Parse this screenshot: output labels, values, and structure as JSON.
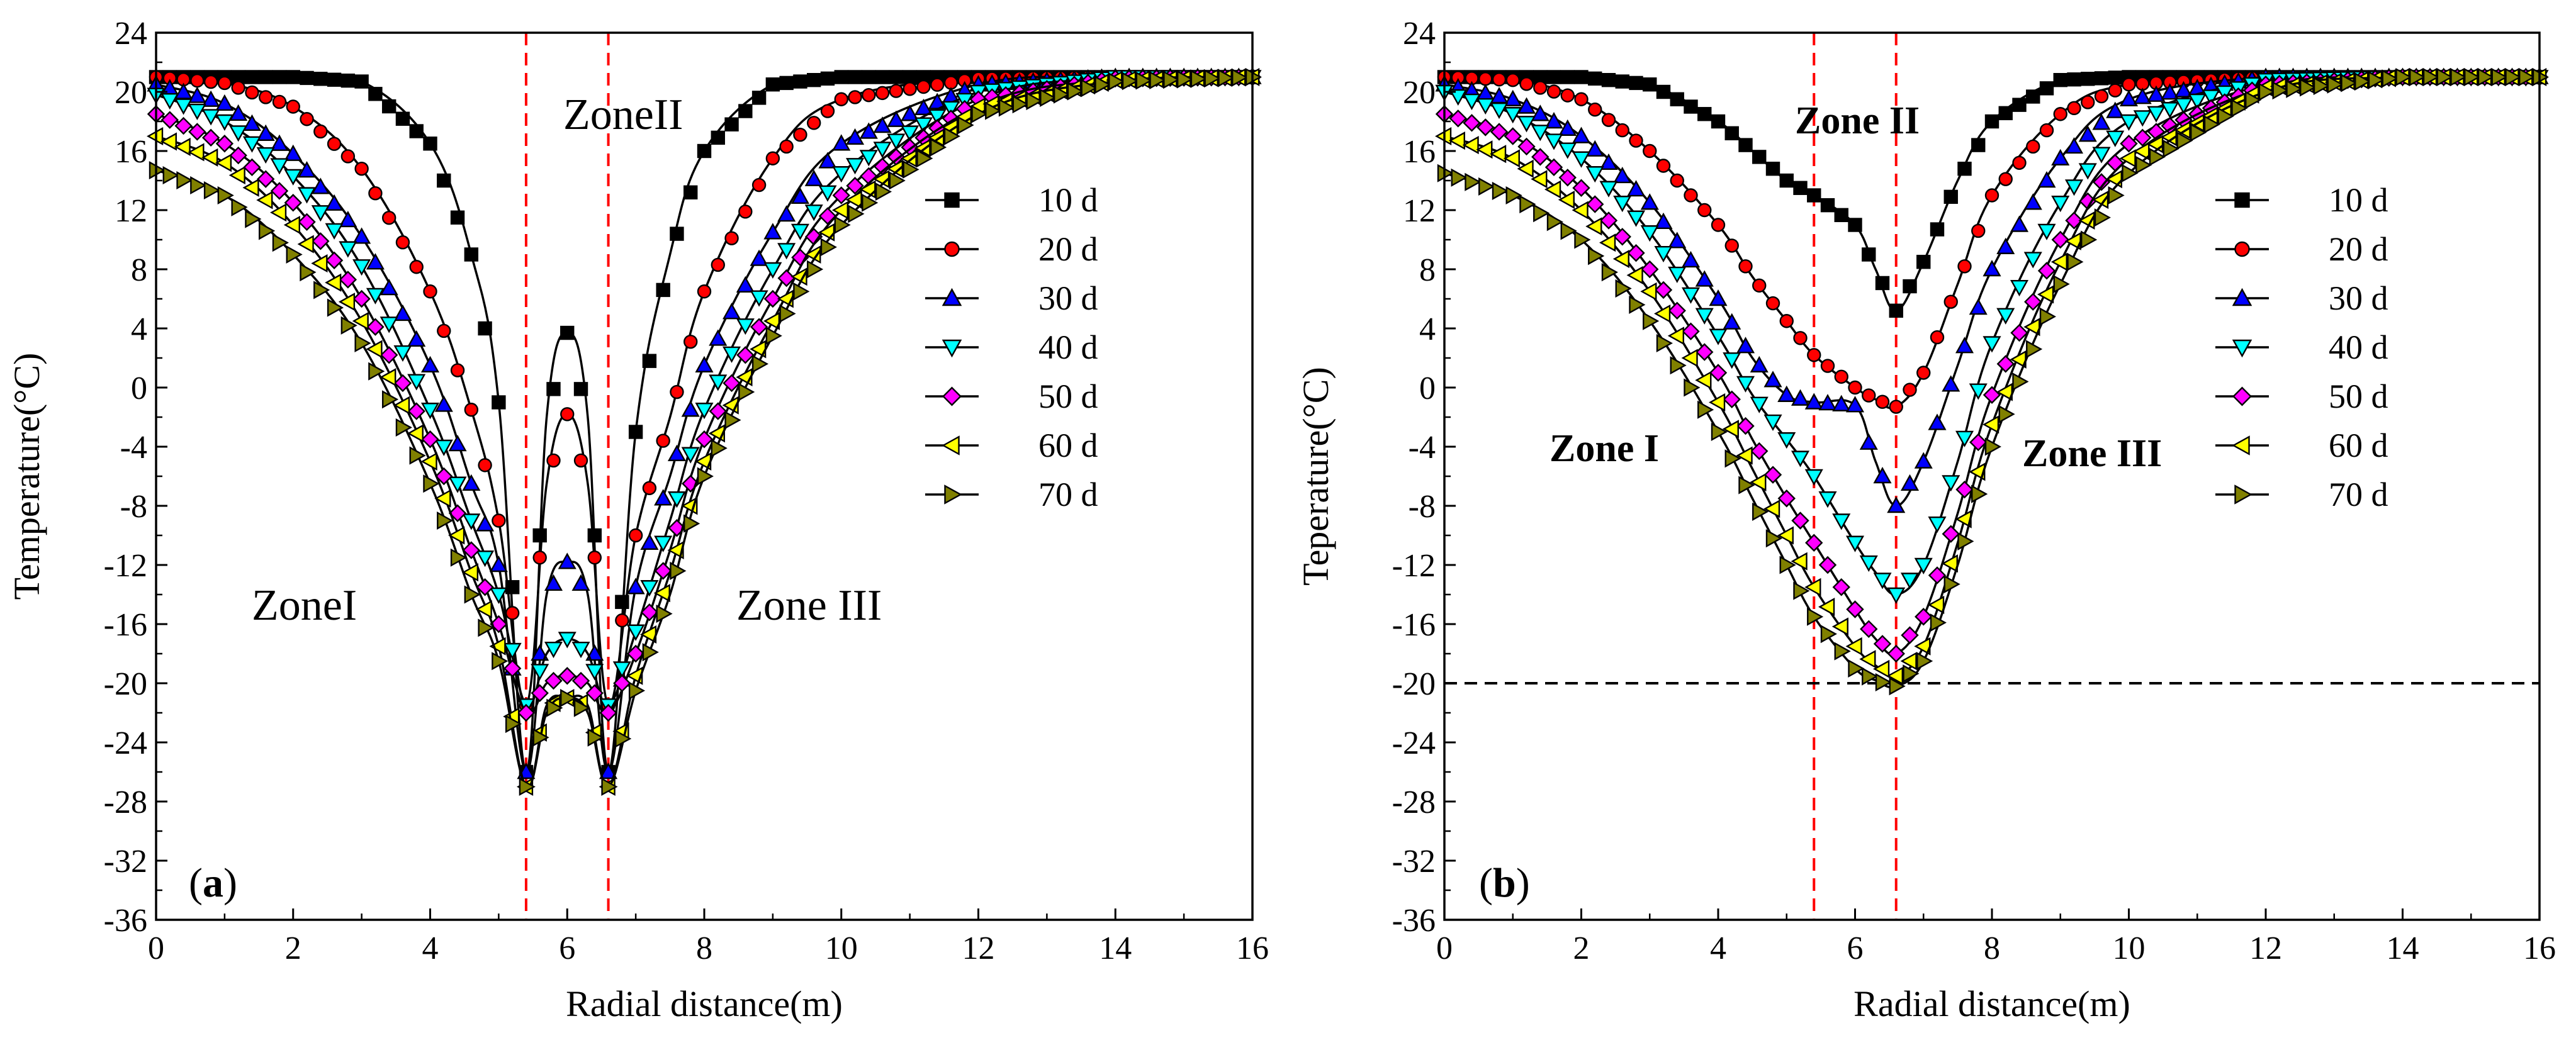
{
  "figure": {
    "xlabel": "Radial distance(m)",
    "xlim": [
      0,
      16
    ],
    "ylim": [
      -36,
      24
    ],
    "x_ticks": [
      0,
      2,
      4,
      6,
      8,
      10,
      12,
      14,
      16
    ],
    "y_ticks": [
      -36,
      -32,
      -28,
      -24,
      -20,
      -16,
      -12,
      -8,
      -4,
      0,
      4,
      8,
      12,
      16,
      20,
      24
    ]
  },
  "series_styles": [
    {
      "name": "10 d",
      "marker": "square",
      "color": "#000000"
    },
    {
      "name": "20 d",
      "marker": "circle",
      "color": "#ff0000"
    },
    {
      "name": "30 d",
      "marker": "triangle-up",
      "color": "#0000ff"
    },
    {
      "name": "40 d",
      "marker": "triangle-down",
      "color": "#00ffff"
    },
    {
      "name": "50 d",
      "marker": "diamond",
      "color": "#ff00ff"
    },
    {
      "name": "60 d",
      "marker": "triangle-left",
      "color": "#ffff00"
    },
    {
      "name": "70 d",
      "marker": "triangle-right",
      "color": "#808000"
    }
  ],
  "chart_data": [
    {
      "type": "line",
      "panel": "a",
      "panel_label_open": "(",
      "panel_label_letter": "a",
      "panel_label_close": ")",
      "ylabel": "Temperature(°C)",
      "xlim": [
        0,
        16
      ],
      "ylim": [
        -36,
        24
      ],
      "zone_labels": {
        "zone1": "ZoneI",
        "zone2": "ZoneII",
        "zone3": "Zone  III"
      },
      "vlines": [
        5.4,
        6.6
      ],
      "hline": null,
      "x": [
        0,
        1,
        2,
        3,
        4,
        4.6,
        5.0,
        5.4,
        5.7,
        6.0,
        6.3,
        6.6,
        7.0,
        7.5,
        8,
        9,
        10,
        12,
        14,
        16
      ],
      "series": [
        {
          "name": "10 d",
          "values": [
            21.0,
            21.0,
            21.0,
            20.7,
            16.5,
            9.0,
            -1.0,
            -26.0,
            -2.0,
            3.7,
            -2.0,
            -26.0,
            -3.0,
            9.0,
            16.0,
            20.5,
            21.0,
            21.0,
            21.0,
            21.0
          ]
        },
        {
          "name": "20 d",
          "values": [
            21.0,
            20.6,
            19.0,
            14.8,
            6.5,
            -1.5,
            -9.0,
            -21.5,
            -6.5,
            -1.8,
            -6.5,
            -21.5,
            -10.0,
            -2.0,
            6.5,
            15.5,
            19.5,
            20.9,
            21.0,
            21.0
          ]
        },
        {
          "name": "30 d",
          "values": [
            20.5,
            19.2,
            15.8,
            10.2,
            1.5,
            -6.5,
            -12.0,
            -26.0,
            -14.0,
            -11.8,
            -14.0,
            -26.0,
            -13.5,
            -6.0,
            1.5,
            10.5,
            16.5,
            20.5,
            21.0,
            21.0
          ]
        },
        {
          "name": "40 d",
          "values": [
            19.8,
            18.0,
            14.3,
            8.2,
            -1.5,
            -9.0,
            -14.0,
            -21.5,
            -18.0,
            -17.0,
            -18.0,
            -21.5,
            -16.5,
            -9.0,
            -1.5,
            8.0,
            14.5,
            20.0,
            21.0,
            21.0
          ]
        },
        {
          "name": "50 d",
          "values": [
            18.5,
            16.5,
            12.5,
            6.0,
            -3.5,
            -11.0,
            -16.0,
            -22.0,
            -20.0,
            -19.5,
            -20.0,
            -22.0,
            -18.0,
            -11.0,
            -3.5,
            6.0,
            13.0,
            19.5,
            20.9,
            21.0
          ]
        },
        {
          "name": "60 d",
          "values": [
            17.0,
            15.2,
            11.0,
            4.5,
            -5.0,
            -12.5,
            -17.5,
            -27.0,
            -21.5,
            -21.0,
            -21.5,
            -27.0,
            -19.5,
            -12.5,
            -5.0,
            4.5,
            12.0,
            19.0,
            20.8,
            21.0
          ]
        },
        {
          "name": "70 d",
          "values": [
            14.7,
            13.0,
            9.0,
            3.0,
            -6.5,
            -14.0,
            -18.5,
            -27.0,
            -22.0,
            -21.0,
            -22.0,
            -27.0,
            -20.5,
            -14.0,
            -6.0,
            3.5,
            11.0,
            18.5,
            20.7,
            21.0
          ]
        }
      ]
    },
    {
      "type": "line",
      "panel": "b",
      "panel_label_open": "(",
      "panel_label_letter": "b",
      "panel_label_close": ")",
      "ylabel": "Teperature(°C)",
      "xlim": [
        0,
        16
      ],
      "ylim": [
        -36,
        24
      ],
      "zone_labels": {
        "zone1": "Zone I",
        "zone2": "Zone II",
        "zone3": "Zone III"
      },
      "vlines": [
        5.4,
        6.6
      ],
      "hline": -20,
      "x": [
        0,
        1,
        2,
        3,
        4,
        4.5,
        5.0,
        5.4,
        6.0,
        6.3,
        6.6,
        7.0,
        7.5,
        8,
        9,
        10,
        12,
        14,
        16
      ],
      "series": [
        {
          "name": "10 d",
          "values": [
            21.0,
            21.0,
            21.0,
            20.5,
            18.0,
            16.0,
            14.0,
            13.0,
            11.0,
            8.0,
            5.2,
            8.5,
            14.0,
            18.0,
            20.8,
            21.0,
            21.0,
            21.0,
            21.0
          ]
        },
        {
          "name": "20 d",
          "values": [
            21.0,
            20.8,
            19.5,
            16.0,
            11.0,
            7.5,
            4.5,
            2.2,
            0.0,
            -0.8,
            -1.3,
            1.0,
            7.0,
            13.0,
            18.5,
            20.5,
            21.0,
            21.0,
            21.0
          ]
        },
        {
          "name": "30 d",
          "values": [
            20.5,
            19.5,
            17.0,
            12.5,
            6.0,
            2.0,
            -0.5,
            -1.0,
            -1.2,
            -5.0,
            -8.0,
            -5.0,
            1.5,
            8.0,
            15.5,
            19.5,
            21.0,
            21.0,
            21.0
          ]
        },
        {
          "name": "40 d",
          "values": [
            20.0,
            18.5,
            15.5,
            10.5,
            3.5,
            -0.5,
            -3.5,
            -6.0,
            -10.5,
            -12.5,
            -14.0,
            -12.0,
            -5.0,
            3.0,
            12.5,
            18.0,
            20.8,
            21.0,
            21.0
          ]
        },
        {
          "name": "50 d",
          "values": [
            18.5,
            17.0,
            13.5,
            8.0,
            1.0,
            -3.5,
            -7.5,
            -10.5,
            -15.0,
            -17.0,
            -18.0,
            -15.5,
            -8.5,
            -0.5,
            10.0,
            16.5,
            20.5,
            21.0,
            21.0
          ]
        },
        {
          "name": "60 d",
          "values": [
            17.0,
            15.5,
            12.0,
            6.5,
            -1.0,
            -5.5,
            -10.0,
            -13.5,
            -17.5,
            -18.8,
            -19.5,
            -17.5,
            -10.5,
            -2.5,
            8.5,
            15.5,
            20.3,
            21.0,
            21.0
          ]
        },
        {
          "name": "70 d",
          "values": [
            14.5,
            13.0,
            10.0,
            4.5,
            -3.0,
            -7.5,
            -12.0,
            -15.5,
            -19.0,
            -19.8,
            -20.2,
            -18.5,
            -12.0,
            -4.0,
            7.0,
            14.5,
            20.0,
            21.0,
            21.0
          ]
        }
      ]
    }
  ]
}
